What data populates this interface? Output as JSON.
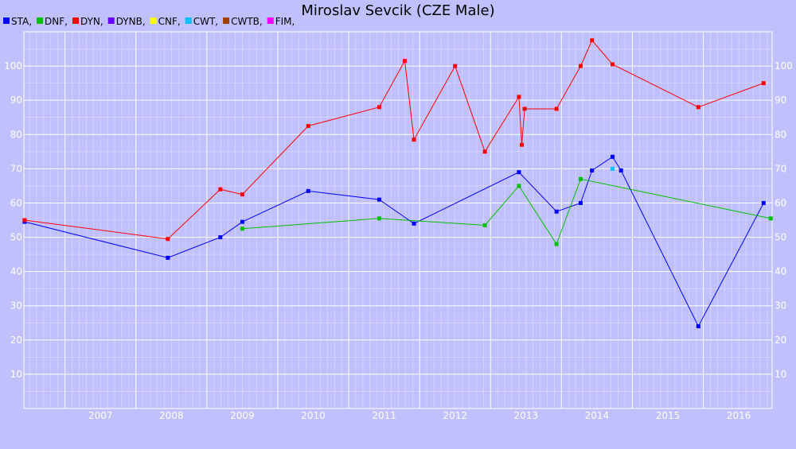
{
  "chart_data": {
    "type": "line",
    "title": "Miroslav Sevcik (CZE Male)",
    "xlabel": "",
    "ylabel": "",
    "xlim": [
      2006.42,
      2016.97
    ],
    "ylim": [
      0,
      110
    ],
    "x_ticks": [
      "2007",
      "2008",
      "2009",
      "2010",
      "2011",
      "2012",
      "2013",
      "2014",
      "2015",
      "2016"
    ],
    "y_ticks": [
      "10",
      "20",
      "30",
      "40",
      "50",
      "60",
      "70",
      "80",
      "90",
      "100"
    ],
    "grid": true,
    "legend": "top-left",
    "legend_entries": [
      {
        "label": "STA,",
        "color": "#0000ff"
      },
      {
        "label": "DNF,",
        "color": "#00c000"
      },
      {
        "label": "DYN,",
        "color": "#ff0000"
      },
      {
        "label": "DYNB,",
        "color": "#6600ff"
      },
      {
        "label": "CNF,",
        "color": "#ffff00"
      },
      {
        "label": "CWT,",
        "color": "#00c0ff"
      },
      {
        "label": "CWTB,",
        "color": "#a04000"
      },
      {
        "label": "FIM,",
        "color": "#ff00ff"
      }
    ],
    "series": [
      {
        "name": "STA",
        "color": "#0000ff",
        "points": [
          [
            2006.43,
            54.5
          ],
          [
            2008.45,
            44
          ],
          [
            2009.19,
            50
          ],
          [
            2009.5,
            54.5
          ],
          [
            2010.43,
            63.5
          ],
          [
            2011.43,
            61
          ],
          [
            2011.92,
            54
          ],
          [
            2013.4,
            69
          ],
          [
            2013.93,
            57.5
          ],
          [
            2014.27,
            60
          ],
          [
            2014.43,
            69.5
          ],
          [
            2014.72,
            73.5
          ],
          [
            2014.84,
            69.5
          ],
          [
            2015.93,
            24
          ],
          [
            2016.85,
            60
          ]
        ]
      },
      {
        "name": "DNF",
        "color": "#00c000",
        "points": [
          [
            2009.5,
            52.5
          ],
          [
            2011.43,
            55.5
          ],
          [
            2012.92,
            53.5
          ],
          [
            2013.4,
            65
          ],
          [
            2013.93,
            48
          ],
          [
            2014.27,
            67
          ],
          [
            2016.95,
            55.5
          ]
        ]
      },
      {
        "name": "DYN",
        "color": "#ff0000",
        "points": [
          [
            2006.43,
            55
          ],
          [
            2008.45,
            49.5
          ],
          [
            2009.19,
            64
          ],
          [
            2009.5,
            62.5
          ],
          [
            2010.43,
            82.5
          ],
          [
            2011.43,
            88
          ],
          [
            2011.79,
            101.5
          ],
          [
            2011.92,
            78.5
          ],
          [
            2012.5,
            100
          ],
          [
            2012.92,
            75
          ],
          [
            2013.4,
            91
          ],
          [
            2013.44,
            77
          ],
          [
            2013.48,
            87.5
          ],
          [
            2013.93,
            87.5
          ],
          [
            2014.27,
            100
          ],
          [
            2014.43,
            107.5
          ],
          [
            2014.72,
            100.5
          ],
          [
            2015.93,
            88
          ],
          [
            2016.85,
            95
          ]
        ]
      },
      {
        "name": "CWT",
        "color": "#00c0ff",
        "points": [
          [
            2014.72,
            70
          ]
        ]
      }
    ]
  }
}
